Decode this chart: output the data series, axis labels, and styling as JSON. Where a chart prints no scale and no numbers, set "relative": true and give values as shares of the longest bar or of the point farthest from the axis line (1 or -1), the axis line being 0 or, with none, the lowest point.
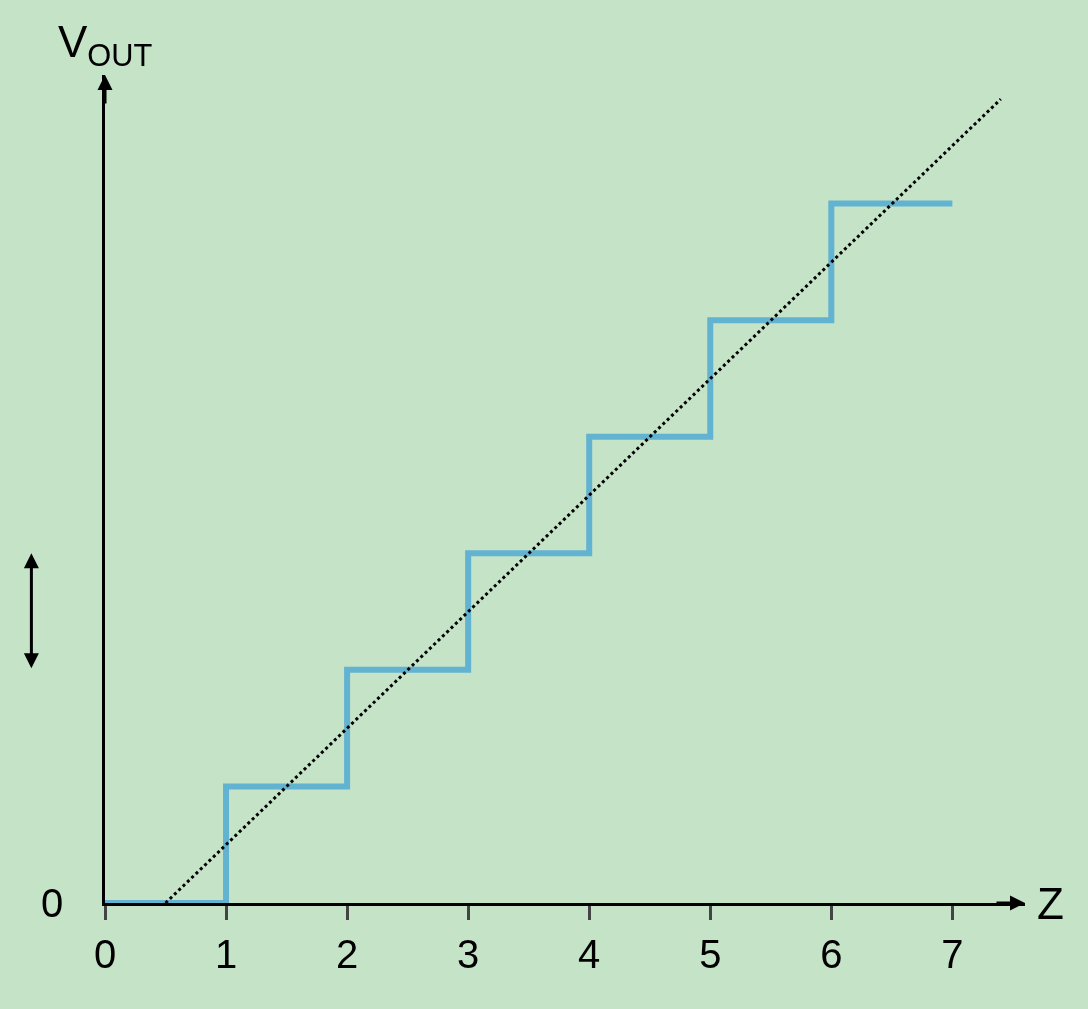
{
  "chart_data": {
    "type": "step",
    "relative": true,
    "xlabel": "Z",
    "ylabel": "V$_{OUT}$",
    "annotations": [
      "0"
    ],
    "x": [
      0,
      1,
      2,
      3,
      4,
      5,
      6,
      7
    ],
    "xlim": [
      0,
      7.6
    ],
    "xticks": [
      0,
      1,
      2,
      3,
      4,
      5,
      6,
      7
    ],
    "grid": false,
    "series": [
      {
        "color": "#62b2d2",
        "values": [
          0,
          0.145,
          0.29,
          0.435,
          0.58,
          0.725,
          0.87,
          0.87
        ]
      },
      {
        "type": "line",
        "color": "#000000",
        "line_style": "dotted",
        "x": [
          0.5,
          7.4
        ],
        "values": [
          0,
          1
        ]
      }
    ]
  }
}
